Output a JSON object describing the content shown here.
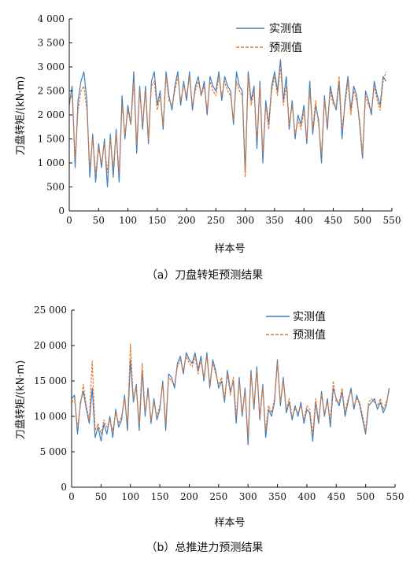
{
  "chart_data": [
    {
      "type": "line",
      "caption": "（a）刀盘转矩预测结果",
      "xlabel": "样本号",
      "ylabel": "刀盘转矩/(kN·m)",
      "xlim": [
        0,
        550
      ],
      "ylim": [
        0,
        4000
      ],
      "x_ticks": [
        "0",
        "50",
        "100",
        "150",
        "200",
        "250",
        "300",
        "350",
        "400",
        "450",
        "500",
        "550"
      ],
      "y_ticks": [
        "0",
        "500",
        "1 000",
        "1 500",
        "2 000",
        "2 500",
        "3 000",
        "3 500",
        "4 000"
      ],
      "legend_position": "top-right",
      "series": [
        {
          "name": "实测值",
          "color": "#3d7fc1",
          "style": "solid",
          "x": [
            0,
            5,
            10,
            15,
            20,
            25,
            30,
            35,
            40,
            45,
            50,
            55,
            60,
            65,
            70,
            75,
            80,
            85,
            90,
            95,
            100,
            105,
            110,
            115,
            120,
            125,
            130,
            135,
            140,
            145,
            150,
            155,
            160,
            165,
            170,
            175,
            180,
            185,
            190,
            195,
            200,
            205,
            210,
            215,
            220,
            225,
            230,
            235,
            240,
            245,
            250,
            255,
            260,
            265,
            270,
            275,
            280,
            285,
            290,
            295,
            300,
            305,
            310,
            315,
            320,
            325,
            330,
            335,
            340,
            345,
            350,
            355,
            360,
            365,
            370,
            375,
            380,
            385,
            390,
            395,
            400,
            405,
            410,
            415,
            420,
            425,
            430,
            435,
            440,
            445,
            450,
            455,
            460,
            465,
            470,
            475,
            480,
            485,
            490,
            495,
            500,
            505,
            510,
            515,
            520,
            525,
            530,
            535,
            540
          ],
          "y": [
            2200,
            2600,
            900,
            2300,
            2700,
            2900,
            2300,
            700,
            1600,
            600,
            1400,
            900,
            1500,
            500,
            1600,
            700,
            1700,
            600,
            2400,
            1500,
            2200,
            1800,
            2900,
            1200,
            2600,
            1700,
            2600,
            1400,
            2700,
            2900,
            2200,
            2500,
            1700,
            2900,
            2400,
            2100,
            2600,
            2900,
            2200,
            2700,
            2300,
            2900,
            2100,
            2600,
            2800,
            2400,
            2700,
            2000,
            2800,
            2600,
            2500,
            2900,
            2300,
            2800,
            2600,
            2500,
            1800,
            2900,
            2600,
            2500,
            800,
            2900,
            2300,
            2600,
            1300,
            2700,
            1000,
            2300,
            1800,
            2600,
            2900,
            2500,
            3150,
            2300,
            2800,
            1700,
            2300,
            1500,
            2000,
            1800,
            2200,
            1400,
            2700,
            1600,
            2200,
            1900,
            1000,
            2400,
            1700,
            2600,
            2300,
            2100,
            2700,
            1500,
            2300,
            2800,
            2100,
            2600,
            2400,
            1800,
            1100,
            2500,
            2300,
            2000,
            2700,
            2400,
            2200,
            2800,
            2700
          ]
        },
        {
          "name": "预测值",
          "color": "#e8762d",
          "style": "dashed",
          "x": [
            0,
            5,
            10,
            15,
            20,
            25,
            30,
            35,
            40,
            45,
            50,
            55,
            60,
            65,
            70,
            75,
            80,
            85,
            90,
            95,
            100,
            105,
            110,
            115,
            120,
            125,
            130,
            135,
            140,
            145,
            150,
            155,
            160,
            165,
            170,
            175,
            180,
            185,
            190,
            195,
            200,
            205,
            210,
            215,
            220,
            225,
            230,
            235,
            240,
            245,
            250,
            255,
            260,
            265,
            270,
            275,
            280,
            285,
            290,
            295,
            300,
            305,
            310,
            315,
            320,
            325,
            330,
            335,
            340,
            345,
            350,
            355,
            360,
            365,
            370,
            375,
            380,
            385,
            390,
            395,
            400,
            405,
            410,
            415,
            420,
            425,
            430,
            435,
            440,
            445,
            450,
            455,
            460,
            465,
            470,
            475,
            480,
            485,
            490,
            495,
            500,
            505,
            510,
            515,
            520,
            525,
            530,
            535,
            540
          ],
          "y": [
            2300,
            2400,
            1100,
            2100,
            2500,
            2600,
            2100,
            900,
            1500,
            800,
            1300,
            1000,
            1400,
            800,
            1500,
            900,
            1600,
            800,
            2200,
            1600,
            2100,
            1800,
            2700,
            1400,
            2500,
            1800,
            2500,
            1500,
            2600,
            2700,
            2100,
            2400,
            1800,
            2800,
            2300,
            2200,
            2500,
            2800,
            2300,
            2600,
            2400,
            2800,
            2200,
            2500,
            2700,
            2400,
            2600,
            2100,
            2700,
            2500,
            2400,
            2800,
            2400,
            2700,
            2500,
            2400,
            1900,
            2700,
            2500,
            2400,
            700,
            2800,
            2200,
            2500,
            1500,
            2600,
            1200,
            2200,
            1700,
            2500,
            2800,
            2400,
            3000,
            2200,
            2600,
            1800,
            2200,
            1600,
            1900,
            1700,
            2100,
            1500,
            2500,
            1700,
            2300,
            1800,
            1200,
            2300,
            1800,
            2500,
            2200,
            2200,
            2800,
            1700,
            2200,
            2700,
            2000,
            2500,
            2300,
            1900,
            1200,
            2400,
            2200,
            2100,
            2600,
            2300,
            2100,
            2700,
            2900
          ]
        }
      ]
    },
    {
      "type": "line",
      "caption": "（b）总推进力预测结果",
      "xlabel": "样本号",
      "ylabel": "刀盘转矩/(kN·m)",
      "xlim": [
        0,
        550
      ],
      "ylim": [
        0,
        25000
      ],
      "x_ticks": [
        "0",
        "50",
        "100",
        "150",
        "200",
        "250",
        "300",
        "350",
        "400",
        "450",
        "500",
        "550"
      ],
      "y_ticks": [
        "0",
        "5 000",
        "10 000",
        "15 000",
        "20 000",
        "25 000"
      ],
      "legend_position": "top-right",
      "series": [
        {
          "name": "实测值",
          "color": "#3d7fc1",
          "style": "solid",
          "x": [
            0,
            5,
            10,
            15,
            20,
            25,
            30,
            35,
            40,
            45,
            50,
            55,
            60,
            65,
            70,
            75,
            80,
            85,
            90,
            95,
            100,
            105,
            110,
            115,
            120,
            125,
            130,
            135,
            140,
            145,
            150,
            155,
            160,
            165,
            170,
            175,
            180,
            185,
            190,
            195,
            200,
            205,
            210,
            215,
            220,
            225,
            230,
            235,
            240,
            245,
            250,
            255,
            260,
            265,
            270,
            275,
            280,
            285,
            290,
            295,
            300,
            305,
            310,
            315,
            320,
            325,
            330,
            335,
            340,
            345,
            350,
            355,
            360,
            365,
            370,
            375,
            380,
            385,
            390,
            395,
            400,
            405,
            410,
            415,
            420,
            425,
            430,
            435,
            440,
            445,
            450,
            455,
            460,
            465,
            470,
            475,
            480,
            485,
            490,
            495,
            500,
            505,
            510,
            515,
            520,
            525,
            530,
            535,
            540
          ],
          "y": [
            12500,
            13000,
            7500,
            12000,
            13500,
            11000,
            9000,
            14000,
            7000,
            8500,
            6500,
            9000,
            7500,
            10000,
            7000,
            11000,
            8500,
            9500,
            13000,
            8000,
            18000,
            12000,
            14500,
            8000,
            16500,
            10000,
            14000,
            9000,
            12500,
            9500,
            11000,
            15000,
            8000,
            16000,
            15500,
            14000,
            17500,
            18500,
            16000,
            19000,
            18000,
            17500,
            19000,
            16500,
            18500,
            15000,
            19000,
            14000,
            18000,
            16500,
            14000,
            15000,
            12000,
            16500,
            13500,
            15000,
            9000,
            15500,
            10000,
            14000,
            6000,
            16500,
            11000,
            17000,
            9500,
            14500,
            7000,
            11000,
            10000,
            12000,
            18000,
            11500,
            15500,
            10500,
            12000,
            9500,
            11500,
            10000,
            12000,
            9000,
            11000,
            10500,
            6500,
            12000,
            9000,
            13500,
            10000,
            12500,
            8500,
            14000,
            12500,
            11500,
            13500,
            10000,
            12000,
            14000,
            11000,
            13000,
            11500,
            9500,
            7500,
            11500,
            12000,
            12500,
            11000,
            12000,
            10500,
            11500,
            14000
          ]
        },
        {
          "name": "预测值",
          "color": "#e8762d",
          "style": "dashed",
          "x": [
            0,
            5,
            10,
            15,
            20,
            25,
            30,
            35,
            40,
            45,
            50,
            55,
            60,
            65,
            70,
            75,
            80,
            85,
            90,
            95,
            100,
            105,
            110,
            115,
            120,
            125,
            130,
            135,
            140,
            145,
            150,
            155,
            160,
            165,
            170,
            175,
            180,
            185,
            190,
            195,
            200,
            205,
            210,
            215,
            220,
            225,
            230,
            235,
            240,
            245,
            250,
            255,
            260,
            265,
            270,
            275,
            280,
            285,
            290,
            295,
            300,
            305,
            310,
            315,
            320,
            325,
            330,
            335,
            340,
            345,
            350,
            355,
            360,
            365,
            370,
            375,
            380,
            385,
            390,
            395,
            400,
            405,
            410,
            415,
            420,
            425,
            430,
            435,
            440,
            445,
            450,
            455,
            460,
            465,
            470,
            475,
            480,
            485,
            490,
            495,
            500,
            505,
            510,
            515,
            520,
            525,
            530,
            535,
            540
          ],
          "y": [
            12000,
            12500,
            8500,
            11500,
            14500,
            11500,
            9500,
            17800,
            8000,
            9000,
            7500,
            9500,
            8500,
            9500,
            8000,
            10500,
            9000,
            10000,
            12500,
            9000,
            20200,
            12500,
            14000,
            9000,
            17500,
            10500,
            13500,
            9500,
            12000,
            10000,
            11500,
            14500,
            9000,
            15500,
            15000,
            14500,
            17000,
            18000,
            16500,
            18500,
            17500,
            17000,
            18500,
            16000,
            18000,
            15500,
            18500,
            14500,
            17500,
            16000,
            14500,
            15500,
            12500,
            16000,
            13000,
            15500,
            10000,
            15000,
            10500,
            13500,
            7000,
            16000,
            11500,
            16500,
            10000,
            14000,
            8000,
            11500,
            10500,
            12500,
            17500,
            12000,
            15000,
            11000,
            12500,
            10000,
            11000,
            10500,
            11500,
            9500,
            11500,
            11000,
            7500,
            12500,
            9500,
            13000,
            10500,
            12000,
            9500,
            15000,
            12000,
            12000,
            14000,
            10500,
            12500,
            13500,
            11500,
            12500,
            12000,
            10000,
            8000,
            12000,
            12500,
            12000,
            11500,
            12500,
            11000,
            12000,
            13500
          ]
        }
      ]
    }
  ]
}
